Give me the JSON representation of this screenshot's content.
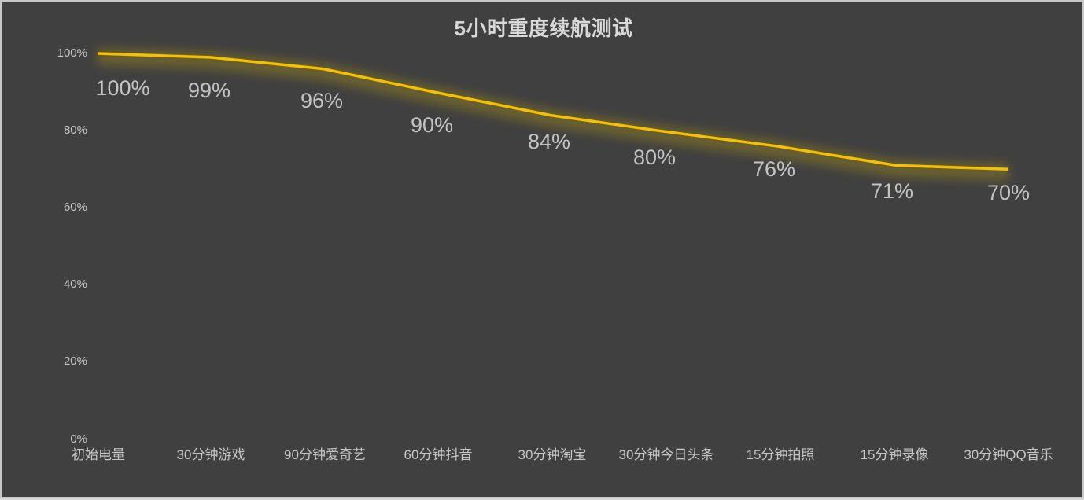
{
  "chart_data": {
    "type": "line",
    "title": "5小时重度续航测试",
    "xlabel": "",
    "ylabel": "",
    "categories": [
      "初始电量",
      "30分钟游戏",
      "90分钟爱奇艺",
      "60分钟抖音",
      "30分钟淘宝",
      "30分钟今日头条",
      "15分钟拍照",
      "15分钟录像",
      "30分钟QQ音乐"
    ],
    "series": [
      {
        "name": "电量",
        "values": [
          100,
          99,
          96,
          90,
          84,
          80,
          76,
          71,
          70
        ],
        "color": "#f5c000"
      }
    ],
    "data_labels": [
      "100%",
      "99%",
      "96%",
      "90%",
      "84%",
      "80%",
      "76%",
      "71%",
      "70%"
    ],
    "ylim": [
      0,
      100
    ],
    "yticks": [
      "0%",
      "20%",
      "40%",
      "60%",
      "80%",
      "100%"
    ],
    "grid": false,
    "legend": "none"
  },
  "colors": {
    "background": "#404040",
    "line": "#f5c000",
    "text": "#c6c6c6"
  }
}
